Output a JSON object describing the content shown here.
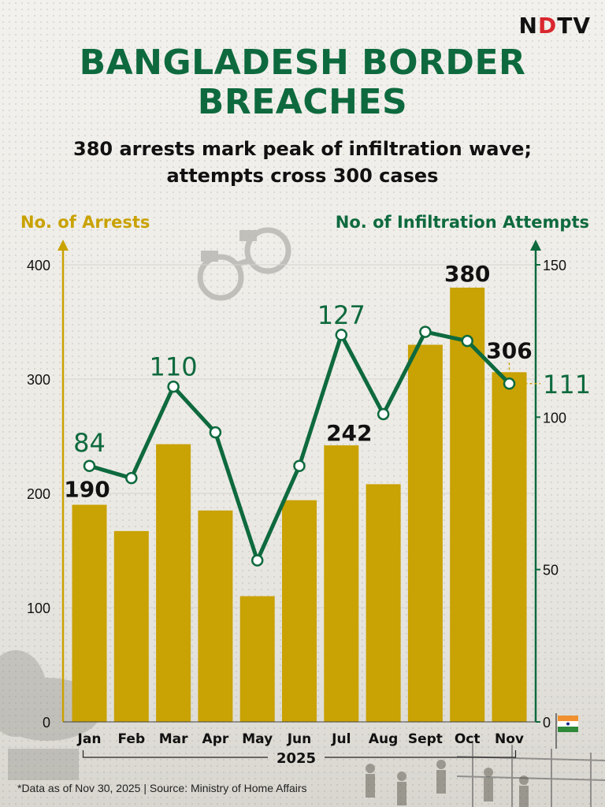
{
  "brand": {
    "logo_pre": "N",
    "logo_dot": "D",
    "logo_post": "TV"
  },
  "colors": {
    "arrests": "#c9a203",
    "attempts": "#0e6a3e",
    "text": "#111111"
  },
  "icons": [
    "handcuffs-icon",
    "india-flag-icon"
  ],
  "footer": {
    "source": "*Data as of Nov 30, 2025 | Source: Ministry of Home Affairs"
  },
  "chart_data": {
    "type": "bar",
    "title_line1": "BANGLADESH BORDER",
    "title_line2": "BREACHES",
    "subtitle_line1": "380 arrests mark peak of infiltration wave;",
    "subtitle_line2": "attempts cross 300 cases",
    "categories": [
      "Jan",
      "Feb",
      "Mar",
      "Apr",
      "May",
      "Jun",
      "Jul",
      "Aug",
      "Sept",
      "Oct",
      "Nov"
    ],
    "year_label": "2025",
    "series": [
      {
        "name": "No. of Arrests",
        "type": "bar",
        "axis": "left",
        "values": [
          190,
          167,
          243,
          185,
          110,
          194,
          242,
          208,
          330,
          380,
          306
        ]
      },
      {
        "name": "No. of Infiltration Attempts",
        "type": "line",
        "axis": "right",
        "values": [
          84,
          80,
          110,
          95,
          53,
          84,
          127,
          101,
          128,
          125,
          111
        ]
      }
    ],
    "data_labels": {
      "bar": [
        {
          "index": 0,
          "text": "190"
        },
        {
          "index": 6,
          "text": "242"
        },
        {
          "index": 9,
          "text": "380"
        },
        {
          "index": 10,
          "text": "306"
        }
      ],
      "line": [
        {
          "index": 0,
          "text": "84"
        },
        {
          "index": 2,
          "text": "110"
        },
        {
          "index": 6,
          "text": "127"
        },
        {
          "index": 10,
          "text": "111"
        }
      ]
    },
    "left_axis": {
      "ylim": [
        0,
        400
      ],
      "ticks": [
        0,
        100,
        200,
        300,
        400
      ]
    },
    "right_axis": {
      "ylim": [
        0,
        150
      ],
      "ticks": [
        0,
        50,
        100,
        150
      ]
    },
    "grid": true,
    "legend": "axis titles"
  }
}
